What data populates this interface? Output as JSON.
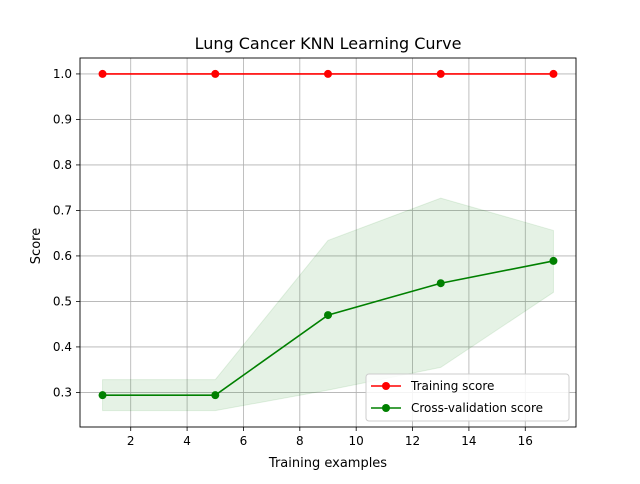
{
  "chart_data": {
    "type": "line",
    "title": "Lung Cancer KNN Learning Curve",
    "xlabel": "Training examples",
    "ylabel": "Score",
    "xlim": [
      0.2,
      17.8
    ],
    "ylim": [
      0.224,
      1.035
    ],
    "xticks": [
      2,
      4,
      6,
      8,
      10,
      12,
      14,
      16
    ],
    "yticks": [
      0.3,
      0.4,
      0.5,
      0.6,
      0.7,
      0.8,
      0.9,
      1.0
    ],
    "grid": true,
    "legend_position": "lower-right",
    "x": [
      1,
      5,
      9,
      13,
      17
    ],
    "series": [
      {
        "name": "Training score",
        "color": "#ff0000",
        "values": [
          1.0,
          1.0,
          1.0,
          1.0,
          1.0
        ],
        "band_lower": [
          1.0,
          1.0,
          1.0,
          1.0,
          1.0
        ],
        "band_upper": [
          1.0,
          1.0,
          1.0,
          1.0,
          1.0
        ]
      },
      {
        "name": "Cross-validation score",
        "color": "#008000",
        "values": [
          0.294,
          0.294,
          0.47,
          0.54,
          0.589
        ],
        "band_lower": [
          0.26,
          0.26,
          0.305,
          0.355,
          0.52
        ],
        "band_upper": [
          0.328,
          0.328,
          0.634,
          0.727,
          0.656
        ]
      }
    ]
  }
}
